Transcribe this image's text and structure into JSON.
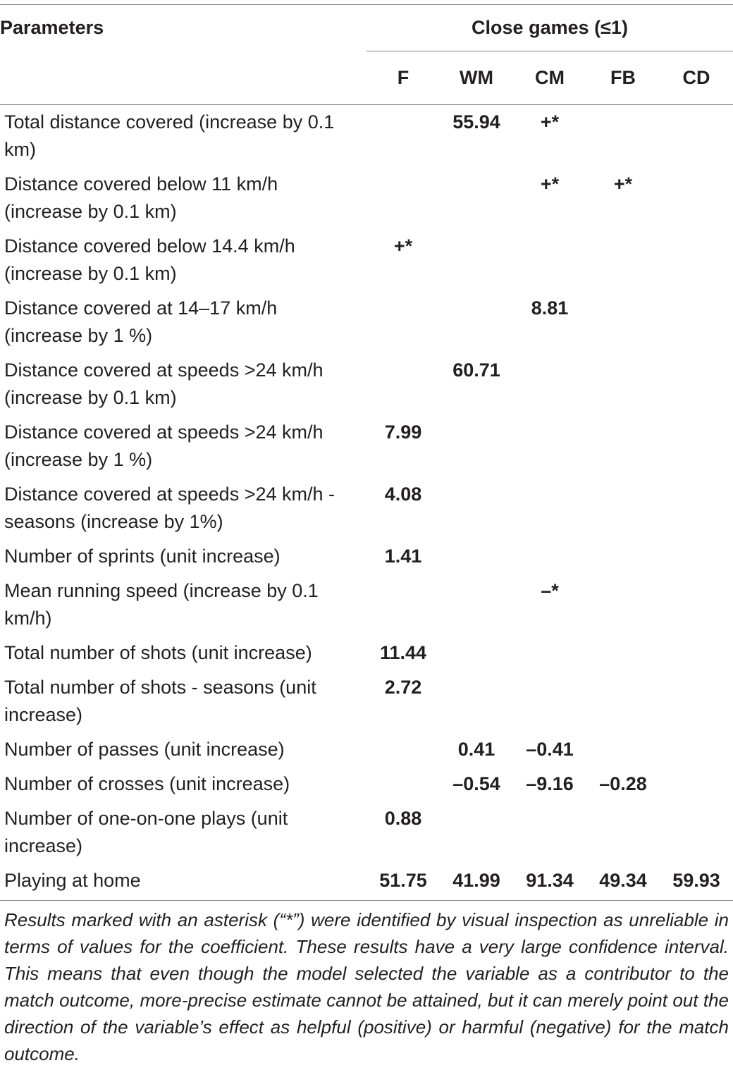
{
  "table": {
    "header": {
      "parameters": "Parameters",
      "group": "Close games (≤1)",
      "columns": [
        "F",
        "WM",
        "CM",
        "FB",
        "CD"
      ]
    },
    "rows": [
      {
        "label": "Total distance covered (increase by 0.1 km)",
        "values": [
          null,
          "55.94",
          "+*",
          null,
          null
        ]
      },
      {
        "label": "Distance covered below 11 km/h (increase by 0.1 km)",
        "values": [
          null,
          null,
          "+*",
          "+*",
          null
        ]
      },
      {
        "label": "Distance covered below 14.4 km/h (increase by 0.1 km)",
        "values": [
          "+*",
          null,
          null,
          null,
          null
        ]
      },
      {
        "label": "Distance covered at 14–17 km/h (increase by 1 %)",
        "values": [
          null,
          null,
          "8.81",
          null,
          null
        ]
      },
      {
        "label": "Distance covered at speeds >24 km/h (increase by 0.1 km)",
        "values": [
          null,
          "60.71",
          null,
          null,
          null
        ]
      },
      {
        "label": "Distance covered at speeds >24 km/h (increase by 1 %)",
        "values": [
          "7.99",
          null,
          null,
          null,
          null
        ]
      },
      {
        "label": "Distance covered at speeds >24 km/h - seasons (increase by 1%)",
        "values": [
          "4.08",
          null,
          null,
          null,
          null
        ]
      },
      {
        "label": "Number of sprints (unit increase)",
        "values": [
          "1.41",
          null,
          null,
          null,
          null
        ]
      },
      {
        "label": "Mean running speed (increase by 0.1 km/h)",
        "values": [
          null,
          null,
          "–*",
          null,
          null
        ]
      },
      {
        "label": "Total number of shots (unit increase)",
        "values": [
          "11.44",
          null,
          null,
          null,
          null
        ]
      },
      {
        "label": "Total number of shots - seasons (unit increase)",
        "values": [
          "2.72",
          null,
          null,
          null,
          null
        ]
      },
      {
        "label": "Number of passes (unit increase)",
        "values": [
          null,
          "0.41",
          "–0.41",
          null,
          null
        ]
      },
      {
        "label": "Number of crosses (unit increase)",
        "values": [
          null,
          "–0.54",
          "–9.16",
          "–0.28",
          null
        ]
      },
      {
        "label": "Number of one-on-one plays (unit increase)",
        "values": [
          "0.88",
          null,
          null,
          null,
          null
        ]
      },
      {
        "label": "Playing at home",
        "values": [
          "51.75",
          "41.99",
          "91.34",
          "49.34",
          "59.93"
        ]
      }
    ],
    "footnote": "Results marked with an asterisk (“*”) were identified by visual inspection as unreliable in terms of values for the coefficient. These results have a very large confidence interval. This means that even though the model selected the variable as a contributor to the match outcome, more-precise estimate cannot be attained, but it can merely point out the direction of the variable’s effect as helpful (positive) or harmful (negative) for the match outcome."
  }
}
